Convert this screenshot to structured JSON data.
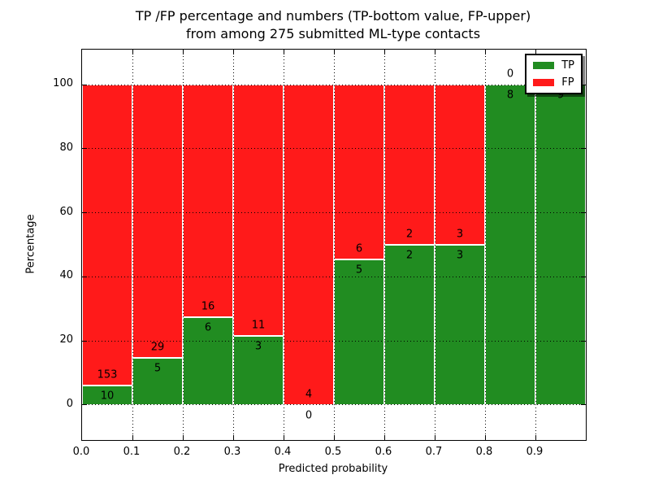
{
  "figure": {
    "title_line1": "TP /FP percentage and numbers (TP-bottom value, FP-upper)",
    "title_line2": "from among 275 submitted ML-type contacts",
    "xlabel": "Predicted probability",
    "ylabel": "Percentage",
    "legend": [
      {
        "label": "TP",
        "color": "#218c21"
      },
      {
        "label": "FP",
        "color": "#ff1a1a"
      }
    ],
    "colors": {
      "tp_green": "#218c21",
      "fp_red": "#ff1a1a",
      "grid": "#000000",
      "frame": "#000000",
      "background": "#ffffff"
    }
  },
  "chart_data": {
    "type": "bar",
    "stacked": true,
    "normalized": "each bin scaled to 100%; bar labels show raw counts (TP bottom, FP upper)",
    "title": "TP /FP percentage and numbers (TP-bottom value, FP-upper)\nfrom among 275 submitted ML-type contacts",
    "xlabel": "Predicted probability",
    "ylabel": "Percentage",
    "total_contacts": 275,
    "bin_width": 0.1,
    "bin_starts": [
      0.0,
      0.1,
      0.2,
      0.3,
      0.4,
      0.5,
      0.6,
      0.7,
      0.8,
      0.9
    ],
    "categories": [
      "0.0-0.1",
      "0.1-0.2",
      "0.2-0.3",
      "0.3-0.4",
      "0.4-0.5",
      "0.5-0.6",
      "0.6-0.7",
      "0.7-0.8",
      "0.8-0.9",
      "0.9-1.0"
    ],
    "series": [
      {
        "name": "TP",
        "color": "#218c21",
        "counts": [
          10,
          5,
          6,
          3,
          0,
          5,
          2,
          3,
          8,
          9
        ]
      },
      {
        "name": "FP",
        "color": "#ff1a1a",
        "counts": [
          153,
          29,
          16,
          11,
          4,
          6,
          2,
          3,
          0,
          0
        ]
      }
    ],
    "tp_percent_per_bin": [
      6.1,
      14.7,
      27.3,
      21.4,
      0.0,
      45.5,
      50.0,
      50.0,
      100.0,
      100.0
    ],
    "x_tick_labels": [
      "0.0",
      "0.1",
      "0.2",
      "0.3",
      "0.4",
      "0.5",
      "0.6",
      "0.7",
      "0.8",
      "0.9"
    ],
    "y_tick_values": [
      0,
      20,
      40,
      60,
      80,
      100
    ],
    "y_tick_labels": [
      "0",
      "20",
      "40",
      "60",
      "80",
      "100"
    ],
    "xlim": [
      0.0,
      1.0
    ],
    "ylim": [
      -11,
      111
    ],
    "grid": true,
    "grid_style": "dotted",
    "legend_position": "upper-right"
  }
}
